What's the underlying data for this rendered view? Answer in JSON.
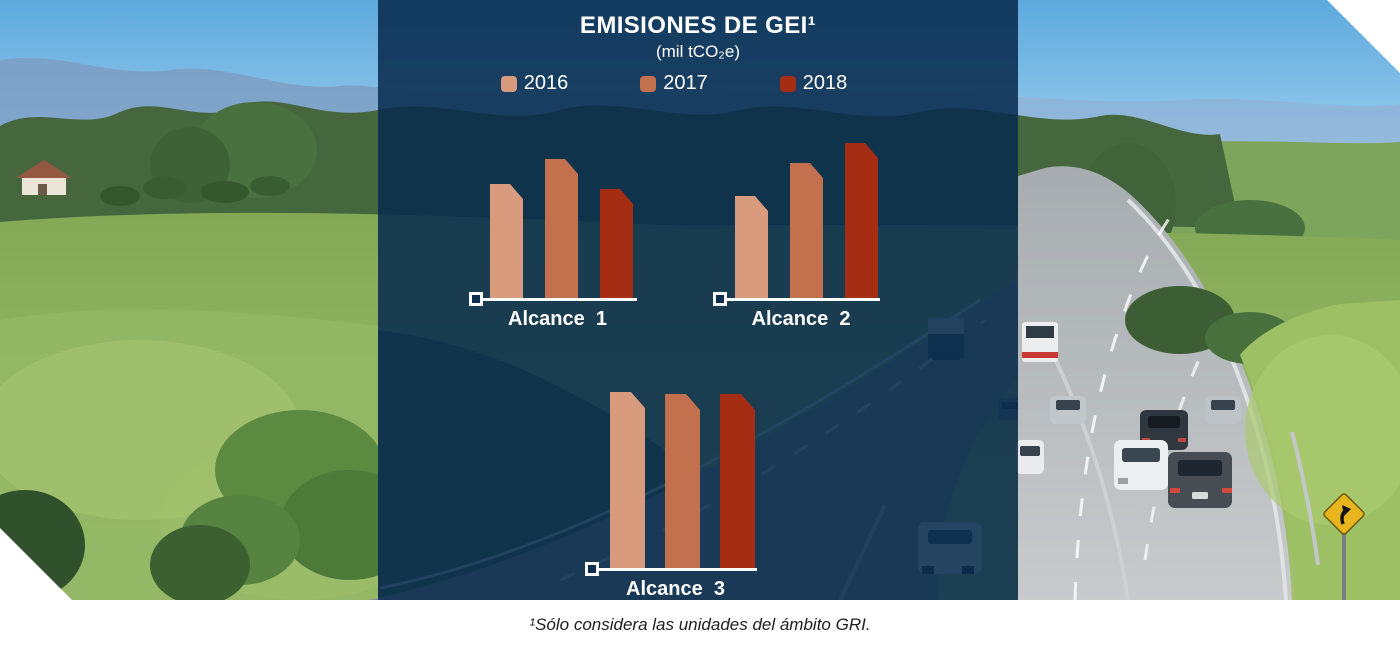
{
  "header": {
    "title": "EMISIONES DE GEI¹",
    "subtitle": "(mil tCO₂e)"
  },
  "legend": {
    "items": [
      {
        "label": "2016",
        "color": "#d89b7d"
      },
      {
        "label": "2017",
        "color": "#c3704f"
      },
      {
        "label": "2018",
        "color": "#a52d13"
      }
    ]
  },
  "chart_data": {
    "type": "bar",
    "title": "EMISIONES DE GEI",
    "subtitle": "(mil tCO2e)",
    "unit": "mil tCO2e",
    "legend_position": "top",
    "grid": false,
    "series_names": [
      "2016",
      "2017",
      "2018"
    ],
    "series_colors": [
      "#d89b7d",
      "#c3704f",
      "#a52d13"
    ],
    "groups": [
      {
        "label": "Alcance  1",
        "values": [
          52.0,
          63.2,
          49.6
        ],
        "display_values": [
          "52,0",
          "63,2",
          "49,6"
        ]
      },
      {
        "label": "Alcance  2",
        "values": [
          11.5,
          15.3,
          17.5
        ],
        "display_values": [
          "11,5",
          "15,3",
          "17,5"
        ]
      },
      {
        "label": "Alcance  3",
        "values": [
          792.4,
          781.6,
          785.0
        ],
        "display_values": [
          "792,4",
          "781,6",
          "785,0"
        ]
      }
    ],
    "note": "each group is scaled independently; no value axis shown"
  },
  "footer": {
    "note": "¹Sólo considera las unidades del ámbito GRI."
  },
  "background": {
    "description": "highway through green hills",
    "sign": "curve-ahead warning sign"
  }
}
